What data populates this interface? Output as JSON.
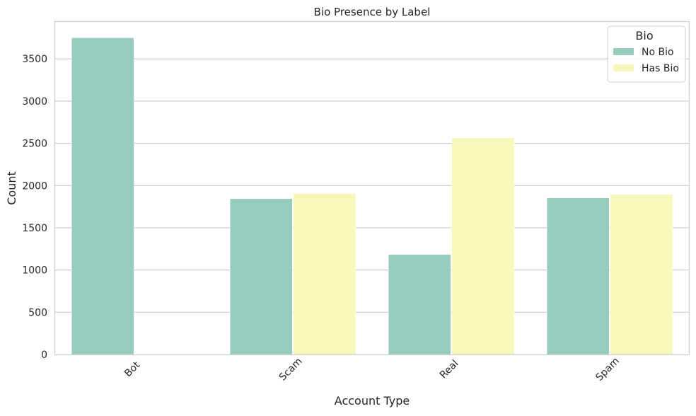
{
  "chart_data": {
    "type": "bar",
    "title": "Bio Presence by Label",
    "xlabel": "Account Type",
    "ylabel": "Count",
    "categories": [
      "Bot",
      "Scam",
      "Real",
      "Spam"
    ],
    "series": [
      {
        "name": "No Bio",
        "values": [
          3750,
          1845,
          1185,
          1855
        ],
        "color": "#96cbbe"
      },
      {
        "name": "Has Bio",
        "values": [
          0,
          1905,
          2565,
          1895
        ],
        "color": "#f7f7b9"
      }
    ],
    "ylim": [
      0,
      3937.5
    ],
    "yticks": [
      0,
      500,
      1000,
      1500,
      2000,
      2500,
      3000,
      3500
    ],
    "grid": true,
    "legend": {
      "title": "Bio",
      "placement": "top-right"
    }
  }
}
